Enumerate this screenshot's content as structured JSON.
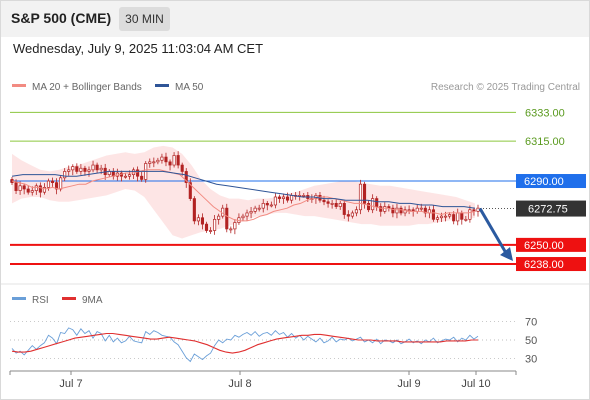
{
  "header": {
    "symbol": "S&P 500 (CME)",
    "timeframe": "30 MIN"
  },
  "datetime": "Wednesday, July 9, 2025 11:03:04 AM CET",
  "credit": "Research © 2025 Trading Central",
  "legend": {
    "ma20": "MA 20 + Bollinger Bands",
    "ma50": "MA 50",
    "rsi": "RSI",
    "rsi_ma": "9MA"
  },
  "colors": {
    "ma20": "#f28b82",
    "bollinger_fill": "#fde2e2",
    "ma50": "#2f5597",
    "candle": "#b22222",
    "target_green": "#8cc63f",
    "support_red": "#ee1111",
    "pivot_blue": "#1f6feb",
    "current_tag": "#333333",
    "arrow": "#2b5aa0",
    "rsi": "#6a9fd8",
    "rsi_ma": "#e03030"
  },
  "chart_data": [
    {
      "type": "candlestick",
      "title": "S&P 500 (CME) 30 MIN",
      "ylim": [
        6228,
        6342
      ],
      "x_labels": [
        "Jul 7",
        "Jul 8",
        "Jul 9",
        "Jul 10"
      ],
      "levels": [
        {
          "value": 6333.0,
          "label": "6333.00",
          "kind": "resistance"
        },
        {
          "value": 6315.0,
          "label": "6315.00",
          "kind": "resistance"
        },
        {
          "value": 6290.0,
          "label": "6290.00",
          "kind": "pivot"
        },
        {
          "value": 6250.0,
          "label": "6250.00",
          "kind": "support"
        },
        {
          "value": 6238.0,
          "label": "6238.00",
          "kind": "support"
        }
      ],
      "current_price": {
        "value": 6272.75,
        "label": "6272.75"
      },
      "closes": [
        6289,
        6284,
        6287,
        6285,
        6283,
        6284,
        6287,
        6283,
        6286,
        6290,
        6289,
        6285,
        6292,
        6296,
        6297,
        6299,
        6296,
        6298,
        6296,
        6297,
        6300,
        6297,
        6298,
        6294,
        6296,
        6293,
        6295,
        6293,
        6293,
        6294,
        6297,
        6293,
        6291,
        6301,
        6302,
        6302,
        6303,
        6305,
        6302,
        6300,
        6306,
        6300,
        6296,
        6289,
        6279,
        6265,
        6267,
        6263,
        6259,
        6259,
        6266,
        6268,
        6273,
        6260,
        6260,
        6264,
        6267,
        6268,
        6270,
        6271,
        6273,
        6273,
        6276,
        6275,
        6275,
        6280,
        6279,
        6280,
        6278,
        6281,
        6281,
        6281,
        6281,
        6279,
        6279,
        6281,
        6278,
        6277,
        6276,
        6276,
        6274,
        6276,
        6269,
        6268,
        6270,
        6272,
        6288,
        6276,
        6272,
        6279,
        6274,
        6271,
        6274,
        6273,
        6270,
        6273,
        6270,
        6272,
        6272,
        6271,
        6273,
        6273,
        6270,
        6272,
        6266,
        6267,
        6268,
        6268,
        6269,
        6265,
        6270,
        6266,
        6266,
        6272,
        6271,
        6273
      ],
      "ma20": [
        6290,
        6289,
        6288,
        6286,
        6286,
        6285,
        6286,
        6285,
        6286,
        6287,
        6288,
        6288,
        6290,
        6291,
        6292,
        6293,
        6294,
        6295,
        6295,
        6296,
        6297,
        6297,
        6297,
        6296,
        6295,
        6294,
        6290,
        6286,
        6282,
        6278,
        6274,
        6271,
        6268,
        6266,
        6265,
        6265,
        6266,
        6268,
        6269,
        6271,
        6272,
        6273,
        6275,
        6276,
        6278,
        6279,
        6280,
        6280,
        6279,
        6278,
        6277,
        6276,
        6276,
        6275,
        6274,
        6273,
        6273,
        6272,
        6272,
        6271,
        6271,
        6271,
        6270,
        6270,
        6269,
        6270,
        6270,
        6270,
        6270,
        6271
      ],
      "bb_upper": [
        6307,
        6303,
        6300,
        6297,
        6296,
        6297,
        6299,
        6300,
        6302,
        6304,
        6306,
        6307,
        6308,
        6307,
        6308,
        6311,
        6312,
        6311,
        6307,
        6300,
        6291,
        6285,
        6281,
        6279,
        6279,
        6278,
        6279,
        6279,
        6280,
        6282,
        6283,
        6285,
        6287,
        6288,
        6289,
        6290,
        6290,
        6289,
        6288,
        6287,
        6287,
        6286,
        6285,
        6284,
        6283,
        6282,
        6281,
        6280,
        6278,
        6276
      ],
      "bb_lower": [
        6276,
        6279,
        6280,
        6280,
        6278,
        6277,
        6277,
        6278,
        6279,
        6280,
        6281,
        6283,
        6285,
        6284,
        6280,
        6272,
        6264,
        6256,
        6254,
        6256,
        6258,
        6259,
        6260,
        6262,
        6264,
        6266,
        6268,
        6269,
        6270,
        6270,
        6269,
        6268,
        6268,
        6267,
        6266,
        6265,
        6264,
        6263,
        6263,
        6262,
        6262,
        6262,
        6262,
        6263,
        6263,
        6264,
        6265,
        6266,
        6266,
        6267
      ],
      "ma50": [
        6293,
        6294,
        6294,
        6294,
        6294,
        6293,
        6293,
        6294,
        6295,
        6296,
        6296,
        6296,
        6296,
        6296,
        6296,
        6295,
        6294,
        6292,
        6290,
        6288,
        6287,
        6286,
        6285,
        6284,
        6283,
        6282,
        6281,
        6280,
        6280,
        6279,
        6279,
        6278,
        6278,
        6278,
        6277,
        6277,
        6276,
        6276,
        6275,
        6275,
        6274,
        6274,
        6274,
        6273
      ]
    },
    {
      "type": "line",
      "title": "RSI",
      "ylim": [
        20,
        80
      ],
      "y_ticks": [
        70,
        50,
        30
      ],
      "series": [
        {
          "name": "RSI",
          "values": [
            41,
            36,
            38,
            34,
            39,
            44,
            40,
            44,
            47,
            55,
            52,
            46,
            58,
            57,
            63,
            61,
            55,
            62,
            57,
            60,
            52,
            59,
            57,
            49,
            55,
            48,
            52,
            47,
            49,
            54,
            49,
            48,
            47,
            59,
            56,
            60,
            58,
            55,
            54,
            53,
            48,
            45,
            38,
            31,
            27,
            35,
            32,
            29,
            33,
            36,
            44,
            50,
            47,
            51,
            50,
            55,
            53,
            56,
            58,
            55,
            59,
            54,
            57,
            58,
            55,
            60,
            56,
            58,
            53,
            57,
            52,
            55,
            50,
            54,
            51,
            48,
            52,
            47,
            49,
            53,
            48,
            51,
            50,
            52,
            49,
            51,
            53,
            48,
            50,
            47,
            51,
            46,
            50,
            49,
            47,
            50,
            46,
            48,
            51,
            47,
            49,
            46,
            50,
            48,
            52,
            47,
            49,
            51,
            50,
            53,
            48,
            52,
            50,
            55,
            51,
            54
          ]
        },
        {
          "name": "9MA",
          "values": [
            38,
            37,
            37,
            38,
            40,
            42,
            44,
            46,
            48,
            50,
            52,
            53,
            54,
            55,
            56,
            57,
            57,
            56,
            55,
            54,
            53,
            52,
            51,
            51,
            52,
            53,
            52,
            51,
            50,
            49,
            47,
            45,
            42,
            39,
            37,
            36,
            37,
            39,
            42,
            45,
            47,
            49,
            51,
            52,
            53,
            54,
            55,
            55,
            56,
            56,
            55,
            54,
            53,
            52,
            51,
            50,
            50,
            50,
            49,
            49,
            49,
            49,
            48,
            48,
            48,
            48,
            48,
            48,
            48,
            49,
            49,
            49,
            49,
            50,
            50
          ]
        }
      ]
    }
  ]
}
